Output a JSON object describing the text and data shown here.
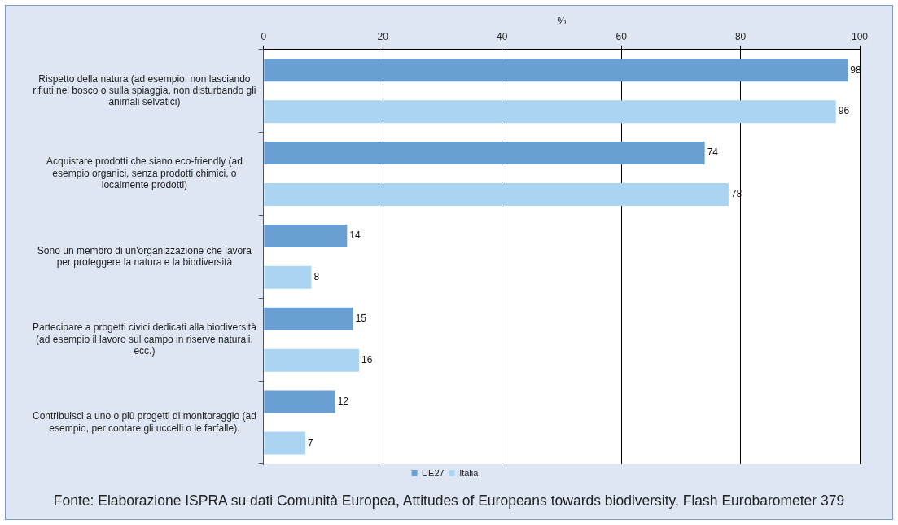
{
  "chart_data": {
    "type": "bar",
    "orientation": "horizontal",
    "xlabel": "%",
    "categories": [
      "Rispetto della natura (ad esempio, non lasciando rifiuti nel bosco o sulla spiaggia, non disturbando gli animali selvatici)",
      "Acquistare prodotti che siano eco-friendly (ad esempio organici, senza prodotti chimici, o localmente prodotti)",
      "Sono un membro di un'organizzazione che lavora per proteggere la natura e la biodiversità",
      "Partecipare a progetti civici dedicati alla biodiversità (ad esempio il lavoro sul campo in riserve naturali, ecc.)",
      "Contribuisci a uno o più progetti di monitoraggio (ad esempio, per contare gli uccelli o le farfalle)."
    ],
    "series": [
      {
        "name": "UE27",
        "color": "#6a9fd4",
        "values": [
          98,
          74,
          14,
          15,
          12
        ]
      },
      {
        "name": "Italia",
        "color": "#aad4f1",
        "values": [
          96,
          78,
          8,
          16,
          7
        ]
      }
    ],
    "xlim": [
      0,
      100
    ],
    "xticks": [
      0,
      20,
      40,
      60,
      80,
      100
    ],
    "grid": "x",
    "legend": "bottom",
    "data_labels": true,
    "annotations": [
      "Fonte: Elaborazione ISPRA su dati Comunità Europea, Attitudes of Europeans towards biodiversity, Flash Eurobarometer 379"
    ]
  }
}
